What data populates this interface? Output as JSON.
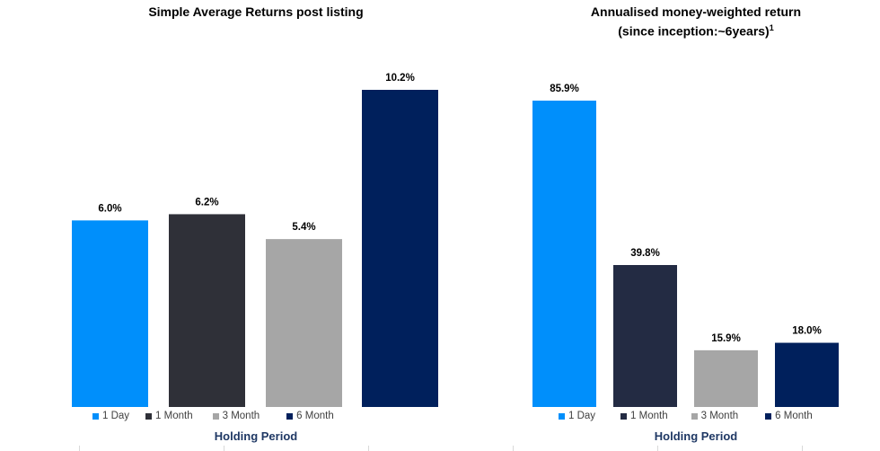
{
  "colors": {
    "c1day": "#008FFB",
    "c1month_left": "#2F3038",
    "c1month_right": "#232B43",
    "c3month": "#A6A6A6",
    "c6month": "#00205C"
  },
  "chart_data": [
    {
      "type": "bar",
      "title": "Simple Average Returns post listing",
      "categories": [
        "1 Day",
        "1 Month",
        "3 Month",
        "6 Month"
      ],
      "values": [
        6.0,
        6.2,
        5.4,
        10.2
      ],
      "data_labels": [
        "6.0%",
        "6.2%",
        "5.4%",
        "10.2%"
      ],
      "xlabel": "Holding Period",
      "ylabel": "",
      "ylim": [
        0,
        10.2
      ],
      "grid": false,
      "legend_position": "bottom"
    },
    {
      "type": "bar",
      "title": "Annualised money-weighted return",
      "subtitle": "(since inception:~6years)",
      "superscript": "1",
      "categories": [
        "1 Day",
        "1 Month",
        "3 Month",
        "6 Month"
      ],
      "values": [
        85.9,
        39.8,
        15.9,
        18.0
      ],
      "data_labels": [
        "85.9%",
        "39.8%",
        "15.9%",
        "18.0%"
      ],
      "xlabel": "Holding Period",
      "ylabel": "",
      "ylim": [
        0,
        85.9
      ],
      "grid": false,
      "legend_position": "bottom"
    }
  ]
}
